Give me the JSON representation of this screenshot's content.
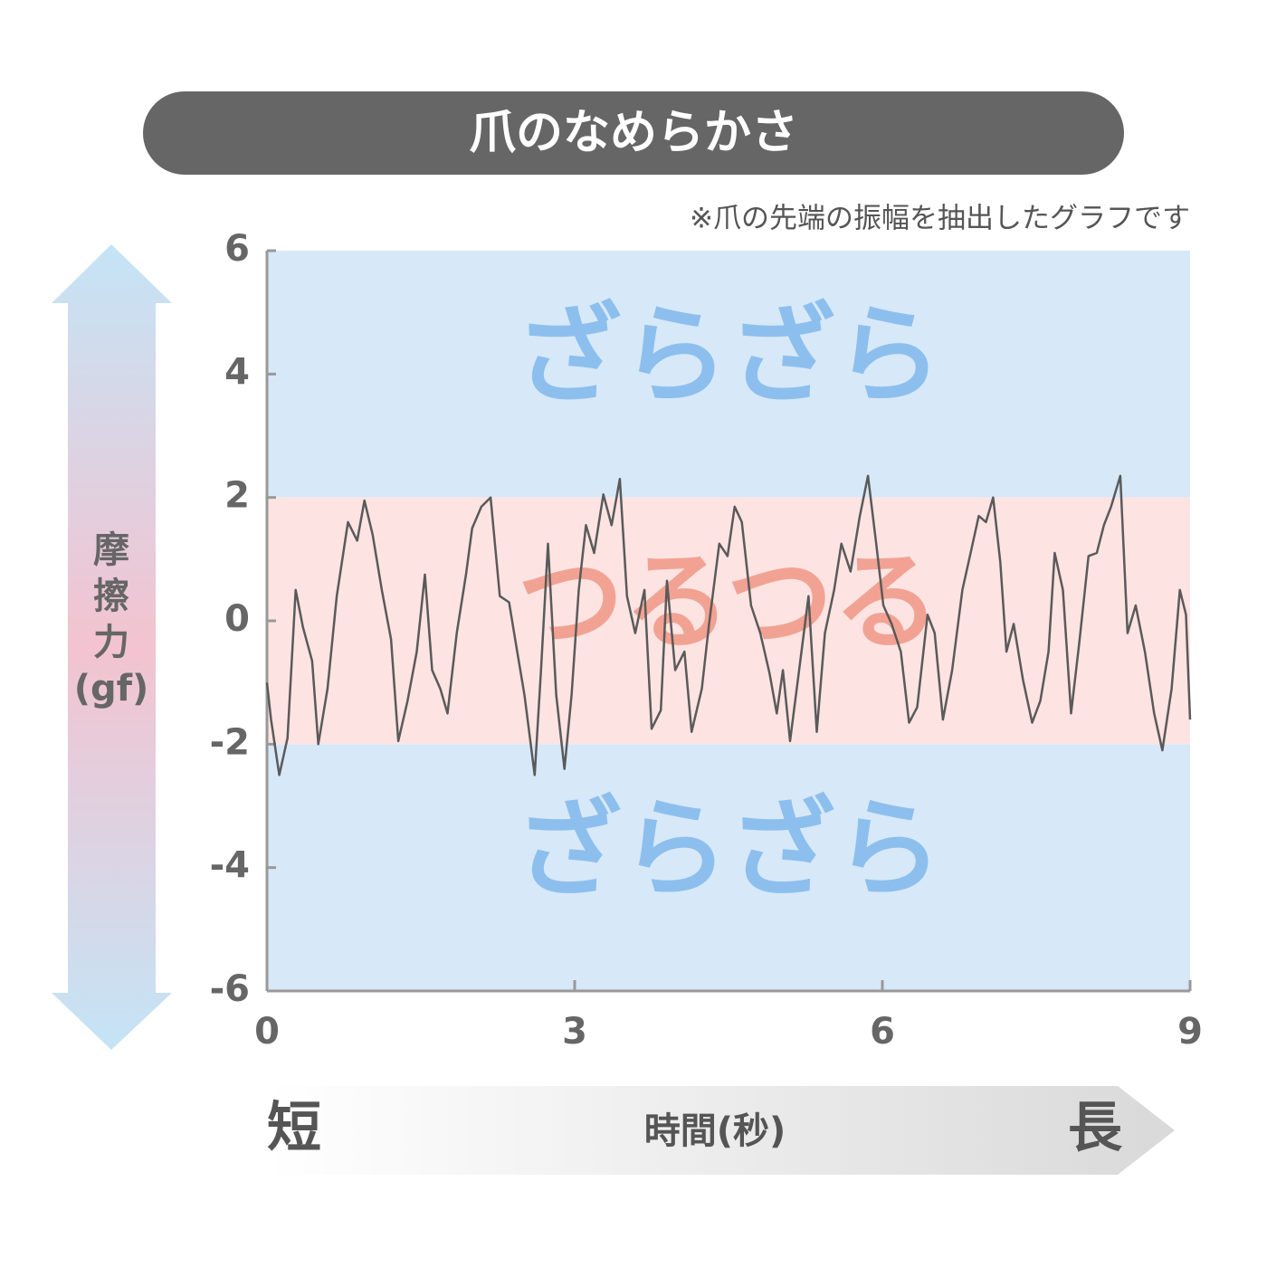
{
  "chart_data": {
    "type": "line",
    "title": "爪のなめらかさ",
    "subtitle": "※爪の先端の振幅を抽出したグラフです",
    "y_label_lines": [
      "摩",
      "擦",
      "力",
      "(gf)"
    ],
    "x_label": "時間(秒)",
    "x_start_label": "短",
    "x_end_label": "長",
    "xlim": [
      0,
      9
    ],
    "xticks": [
      0,
      3,
      6,
      9
    ],
    "ylim": [
      -6,
      6
    ],
    "yticks": [
      -6,
      -4,
      -2,
      0,
      2,
      4,
      6
    ],
    "bands": [
      {
        "from": 2,
        "to": 6,
        "label": "ざらざら",
        "color": "#d7e8f8",
        "text_color": "#8cbfed"
      },
      {
        "from": -2,
        "to": 2,
        "label": "つるつる",
        "color": "#fde4e2",
        "text_color": "#f2a293"
      },
      {
        "from": -6,
        "to": -2,
        "label": "ざらざら",
        "color": "#d7e8f8",
        "text_color": "#8cbfed"
      }
    ],
    "x": [
      0,
      0.04,
      0.12,
      0.2,
      0.28,
      0.35,
      0.44,
      0.5,
      0.59,
      0.68,
      0.79,
      0.88,
      0.95,
      1.03,
      1.12,
      1.21,
      1.28,
      1.37,
      1.46,
      1.54,
      1.61,
      1.69,
      1.76,
      1.85,
      1.94,
      2.0,
      2.09,
      2.18,
      2.27,
      2.36,
      2.44,
      2.51,
      2.61,
      2.67,
      2.74,
      2.82,
      2.9,
      2.97,
      3.04,
      3.11,
      3.19,
      3.28,
      3.36,
      3.44,
      3.51,
      3.59,
      3.68,
      3.75,
      3.84,
      3.9,
      3.98,
      4.07,
      4.14,
      4.24,
      4.31,
      4.41,
      4.49,
      4.56,
      4.63,
      4.72,
      4.81,
      4.9,
      4.97,
      5.03,
      5.1,
      5.2,
      5.28,
      5.36,
      5.44,
      5.53,
      5.6,
      5.69,
      5.78,
      5.86,
      5.94,
      6.01,
      6.09,
      6.18,
      6.26,
      6.34,
      6.44,
      6.51,
      6.59,
      6.68,
      6.78,
      6.86,
      6.94,
      7.01,
      7.08,
      7.15,
      7.21,
      7.28,
      7.37,
      7.46,
      7.54,
      7.62,
      7.68,
      7.76,
      7.84,
      7.92,
      8.01,
      8.09,
      8.16,
      8.23,
      8.32,
      8.39,
      8.47,
      8.56,
      8.65,
      8.73,
      8.82,
      8.9,
      8.96,
      9.0
    ],
    "series": [
      {
        "color": "#5a5a5a",
        "values": [
          -1.0,
          -1.6,
          -2.5,
          -1.9,
          0.5,
          -0.1,
          -0.65,
          -2.0,
          -1.1,
          0.4,
          1.6,
          1.3,
          1.95,
          1.4,
          0.5,
          -0.3,
          -1.95,
          -1.3,
          -0.5,
          0.75,
          -0.8,
          -1.1,
          -1.5,
          -0.2,
          0.75,
          1.5,
          1.85,
          2.0,
          0.4,
          0.3,
          -0.5,
          -1.2,
          -2.5,
          -0.85,
          1.25,
          -1.2,
          -2.4,
          -1.2,
          0.5,
          1.55,
          1.1,
          2.05,
          1.55,
          2.3,
          0.4,
          -0.2,
          0.5,
          -1.75,
          -1.45,
          0.65,
          -0.8,
          -0.5,
          -1.8,
          -1.1,
          -0.05,
          1.25,
          1.05,
          1.85,
          1.6,
          0.25,
          -0.2,
          -0.85,
          -1.5,
          -0.8,
          -1.95,
          -0.65,
          0.4,
          -1.8,
          -0.2,
          0.5,
          1.25,
          0.8,
          1.7,
          2.35,
          1.25,
          0.25,
          -0.05,
          -0.5,
          -1.65,
          -1.4,
          0.1,
          -0.2,
          -1.6,
          -0.8,
          0.5,
          1.1,
          1.7,
          1.6,
          2.0,
          0.95,
          -0.5,
          -0.05,
          -0.95,
          -1.65,
          -1.3,
          -0.5,
          1.1,
          0.5,
          -1.5,
          -0.35,
          1.05,
          1.1,
          1.55,
          1.85,
          2.35,
          -0.2,
          0.25,
          -0.5,
          -1.5,
          -2.1,
          -1.1,
          0.5,
          0.1,
          -1.6
        ]
      }
    ]
  }
}
